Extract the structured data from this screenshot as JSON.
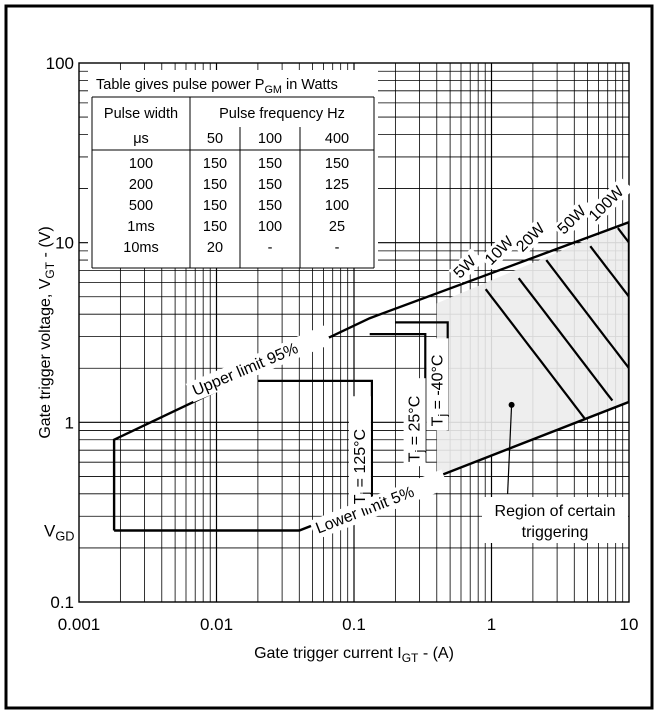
{
  "chart_data": {
    "type": "line",
    "xlabel": "Gate trigger current I",
    "xlabel_sub": "GT",
    "xlabel_tail": " - (A)",
    "ylabel": "Gate trigger voltage, V",
    "ylabel_sub": "GT",
    "ylabel_tail": " - (V)",
    "x_scale": "log",
    "y_scale": "log",
    "xlim": [
      0.001,
      10
    ],
    "ylim": [
      0.1,
      100
    ],
    "x_ticks": [
      {
        "value": 0.001,
        "label": "0.001"
      },
      {
        "value": 0.01,
        "label": "0.01"
      },
      {
        "value": 0.1,
        "label": "0.1"
      },
      {
        "value": 1,
        "label": "1"
      },
      {
        "value": 10,
        "label": "10"
      }
    ],
    "y_ticks": [
      {
        "value": 0.1,
        "label": "0.1"
      },
      {
        "value": 1,
        "label": "1"
      },
      {
        "value": 10,
        "label": "10"
      },
      {
        "value": 100,
        "label": "100"
      }
    ],
    "vgd_label": {
      "main": "V",
      "sub": "GD",
      "value": 0.25
    },
    "grid": true,
    "boundary": {
      "points": [
        [
          0.0018,
          0.25
        ],
        [
          0.0018,
          0.8
        ],
        [
          0.13,
          3.8
        ],
        [
          10,
          13
        ],
        [
          10,
          1.3
        ],
        [
          0.04,
          0.25
        ],
        [
          0.0018,
          0.25
        ]
      ]
    },
    "upper_limit": {
      "label": "Upper limit 95%",
      "points": [
        [
          0.0018,
          0.8
        ],
        [
          10,
          13
        ]
      ]
    },
    "lower_limit": {
      "label": "Lower limit 5%",
      "points": [
        [
          0.04,
          0.25
        ],
        [
          10,
          1.3
        ]
      ]
    },
    "temperature_curves": [
      {
        "label_main": "T",
        "label_sub": "j",
        "label_tail": " = 125°C",
        "points": [
          [
            0.02,
            1.7
          ],
          [
            0.135,
            1.7
          ],
          [
            0.135,
            0.3
          ]
        ]
      },
      {
        "label_main": "T",
        "label_sub": "j",
        "label_tail": " = 25°C",
        "points": [
          [
            0.13,
            3.1
          ],
          [
            0.33,
            3.1
          ],
          [
            0.33,
            0.6
          ]
        ]
      },
      {
        "label_main": "T",
        "label_sub": "j",
        "label_tail": " = -40°C",
        "points": [
          [
            0.2,
            3.6
          ],
          [
            0.48,
            3.6
          ],
          [
            0.48,
            0.9
          ]
        ]
      }
    ],
    "power_lines": [
      {
        "label": "5W",
        "watts": 5
      },
      {
        "label": "10W",
        "watts": 10
      },
      {
        "label": "20W",
        "watts": 20
      },
      {
        "label": "50W",
        "watts": 50
      },
      {
        "label": "100W",
        "watts": 100
      }
    ],
    "certain_region": {
      "label_line1": "Region of certain",
      "label_line2": "triggering",
      "x_min": 0.4
    },
    "annotation_dot": [
      1.4,
      1.25
    ],
    "table": {
      "title_main": "Table gives pulse power P",
      "title_sub": "GM",
      "title_tail": " in Watts",
      "col_header_1": "Pulse width",
      "col_header_2": "Pulse frequency Hz",
      "sub_headers": [
        "μs",
        "50",
        "100",
        "400"
      ],
      "rows": [
        [
          "100",
          "150",
          "150",
          "150"
        ],
        [
          "200",
          "150",
          "150",
          "125"
        ],
        [
          "500",
          "150",
          "150",
          "100"
        ],
        [
          "1ms",
          "150",
          "100",
          "25"
        ],
        [
          "10ms",
          "20",
          "-",
          "-"
        ]
      ]
    }
  }
}
